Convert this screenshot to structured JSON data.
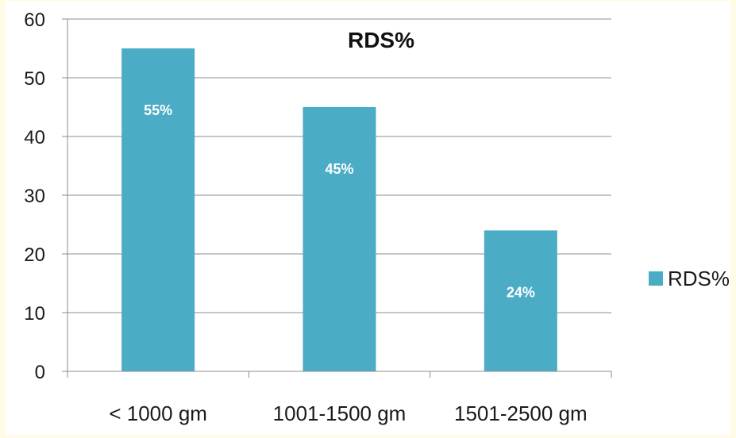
{
  "chart_data": {
    "type": "bar",
    "title": "RDS%",
    "categories": [
      "< 1000 gm",
      "1001-1500 gm",
      "1501-2500 gm"
    ],
    "series": [
      {
        "name": "RDS%",
        "values": [
          55,
          45,
          24
        ],
        "data_labels": [
          "55%",
          "45%",
          "24%"
        ],
        "color": "#4bacc6"
      }
    ],
    "ylim": [
      0,
      60
    ],
    "yticks": [
      0,
      10,
      20,
      30,
      40,
      50,
      60
    ],
    "grid": true,
    "legend_position": "right"
  }
}
